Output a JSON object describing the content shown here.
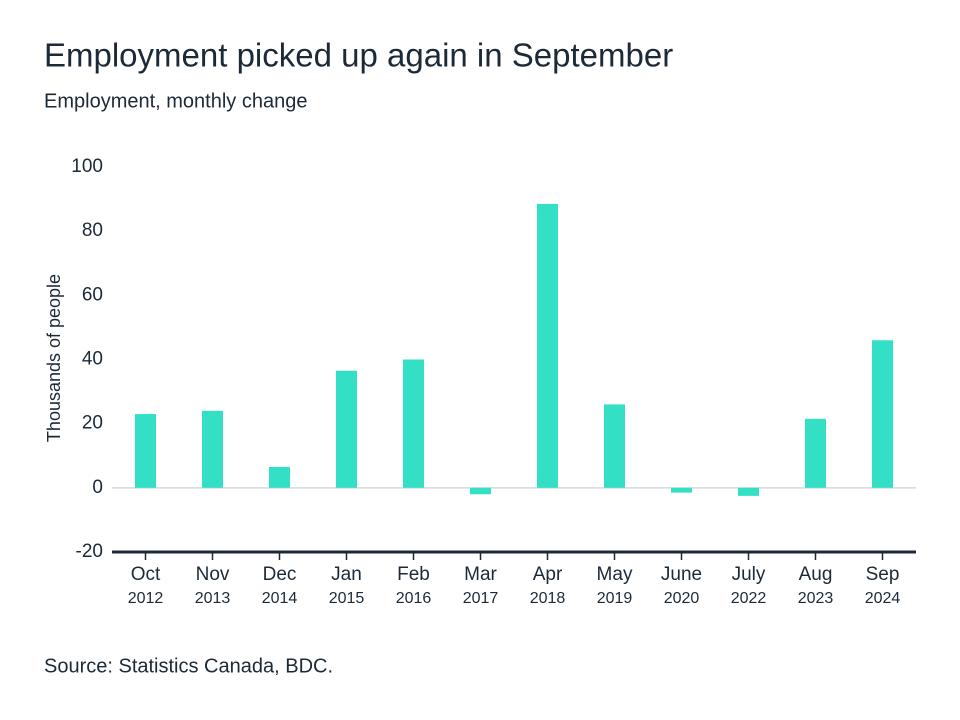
{
  "chart_data": {
    "type": "bar",
    "title": "Employment picked up again in September",
    "subtitle": "Employment, monthly change",
    "y_label": "Thousands of people",
    "source": "Source: Statistics Canada, BDC.",
    "categories": [
      "Oct 2012",
      "Nov 2013",
      "Dec 2014",
      "Jan 2015",
      "Feb 2016",
      "Mar 2017",
      "Apr 2018",
      "May 2019",
      "June 2020",
      "July 2022",
      "Aug 2023",
      "Sep 2024"
    ],
    "values": [
      23,
      24,
      6.5,
      36.5,
      40,
      -2,
      88.5,
      26,
      -1.5,
      -2.5,
      21.5,
      46
    ],
    "color": "#33e0c6",
    "ylim": [
      -20,
      100
    ],
    "yticks": [
      -20,
      0,
      20,
      40,
      60,
      80,
      100
    ],
    "grid": false
  }
}
